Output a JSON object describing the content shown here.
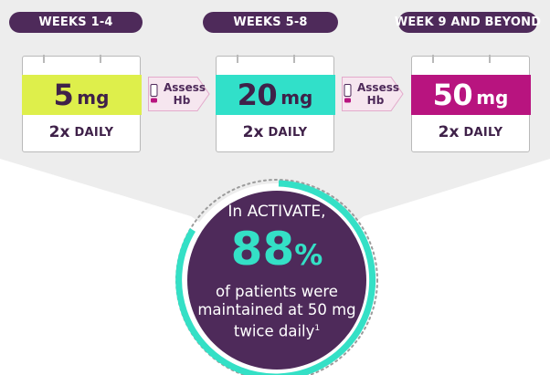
{
  "phases": [
    {
      "label": "WEEKS 1-4"
    },
    {
      "label": "WEEKS 5-8"
    },
    {
      "label": "WEEK 9 AND BEYOND"
    }
  ],
  "doses": [
    {
      "amount": "5",
      "unit": "mg",
      "frequency_x": "2x",
      "frequency_word": "DAILY",
      "color": "#deef4b"
    },
    {
      "amount": "20",
      "unit": "mg",
      "frequency_x": "2x",
      "frequency_word": "DAILY",
      "color": "#31e0c9"
    },
    {
      "amount": "50",
      "unit": "mg",
      "frequency_x": "2x",
      "frequency_word": "DAILY",
      "color": "#b8147f"
    }
  ],
  "assess": [
    {
      "line1": "Assess",
      "line2": "Hb",
      "icon": "exclamation-icon"
    },
    {
      "line1": "Assess",
      "line2": "Hb",
      "icon": "exclamation-icon"
    }
  ],
  "result": {
    "intro_line1": "In ACTIVATE,",
    "percent_value": "88",
    "percent_sign": "%",
    "desc_line1": "of patients were",
    "desc_line2": "maintained at 50 mg",
    "desc_line3": "twice daily",
    "footnote": "1"
  },
  "colors": {
    "panel_gray": "#ededed",
    "phase_pill": "#4e2a5a",
    "circle_fill": "#4e2a5a",
    "circle_ring": "#34e0c6",
    "percent_text": "#34e0c6",
    "assess_arrow": "#f6e6ef",
    "assess_border": "#e3aacb",
    "exclamation": "#b8147f"
  }
}
